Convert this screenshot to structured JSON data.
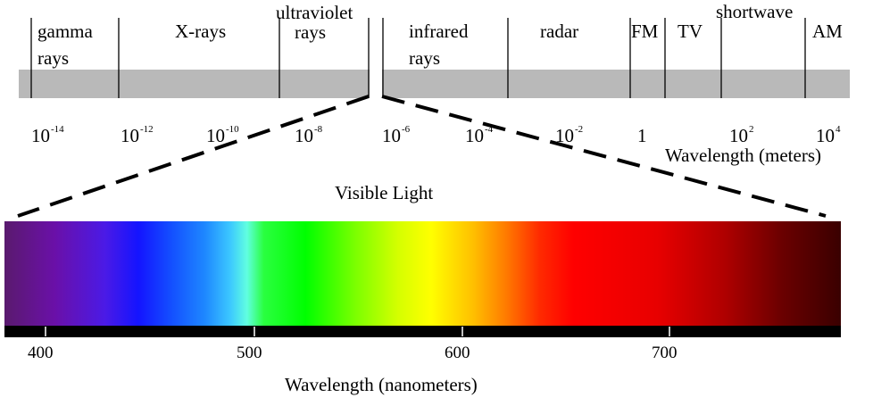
{
  "spectrum_bands": [
    {
      "name": "gamma",
      "line1": "gamma",
      "line2": "rays"
    },
    {
      "name": "xrays",
      "line1": "X-rays",
      "line2": ""
    },
    {
      "name": "ultraviolet",
      "line1": "ultraviolet",
      "line2": "rays"
    },
    {
      "name": "infrared",
      "line1": "infrared",
      "line2": "rays"
    },
    {
      "name": "radar",
      "line1": "radar",
      "line2": ""
    },
    {
      "name": "fm",
      "line1": "FM",
      "line2": ""
    },
    {
      "name": "tv",
      "line1": "TV",
      "line2": ""
    },
    {
      "name": "shortwave",
      "line1": "shortwave",
      "line2": ""
    },
    {
      "name": "am",
      "line1": "AM",
      "line2": ""
    }
  ],
  "wavelength_ticks": [
    {
      "base": "10",
      "exp": "-14"
    },
    {
      "base": "10",
      "exp": "-12"
    },
    {
      "base": "10",
      "exp": "-10"
    },
    {
      "base": "10",
      "exp": "-8"
    },
    {
      "base": "10",
      "exp": "-6"
    },
    {
      "base": "10",
      "exp": "-4"
    },
    {
      "base": "10",
      "exp": "-2"
    },
    {
      "base": "1",
      "exp": ""
    },
    {
      "base": "10",
      "exp": "2"
    },
    {
      "base": "10",
      "exp": "4"
    }
  ],
  "wavelength_meters_label": "Wavelength (meters)",
  "visible_light_title": "Visible Light",
  "nanometer_ticks": [
    "400",
    "500",
    "600",
    "700"
  ],
  "nanometer_label": "Wavelength (nanometers)",
  "colors": {
    "band_gray": "#b9b9b9",
    "dashed_line": "#000000",
    "nm_bar": "#000000"
  }
}
